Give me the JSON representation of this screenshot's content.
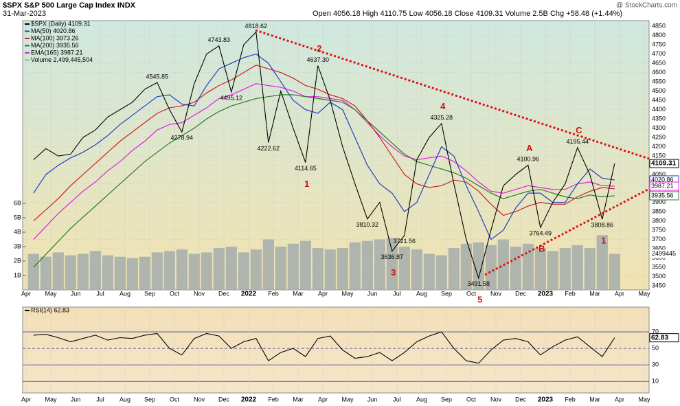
{
  "chart_data": [
    {
      "type": "line",
      "title": "$SPX S&P 500 Large Cap Index INDX",
      "subtitle": "31-Mar-2023",
      "quote": "Open 4056.18  High 4110.75  Low 4056.18  Close 4109.31  Volume 2.5B  Chg +58.48 (+1.44%)",
      "credit": "@ StockCharts.com",
      "categories": [
        "Apr",
        null,
        "May",
        null,
        "Jun",
        null,
        "Jul",
        null,
        "Aug",
        null,
        "Sep",
        null,
        "Oct",
        null,
        "Nov",
        null,
        "Dec",
        null,
        "2022",
        null,
        "Feb",
        null,
        "Mar",
        null,
        "Apr",
        null,
        "May",
        null,
        "Jun",
        null,
        "Jul",
        null,
        "Aug",
        null,
        "Sep",
        null,
        "Oct",
        null,
        "Nov",
        null,
        "Dec",
        null,
        "2023",
        null,
        "Feb",
        null,
        "Mar",
        null,
        "Apr",
        null,
        "May",
        null
      ],
      "ylim": [
        3428,
        4880
      ],
      "yticks": [
        3450,
        3500,
        3550,
        3600,
        3650,
        3700,
        3750,
        3800,
        3850,
        3900,
        3950,
        4000,
        4050,
        4100,
        4150,
        4200,
        4250,
        4300,
        4350,
        4400,
        4450,
        4500,
        4550,
        4600,
        4650,
        4700,
        4750,
        4800,
        4850
      ],
      "y2lim": [
        0,
        18670000000
      ],
      "y2ticks": [
        {
          "value": 1000000000,
          "label": "1B"
        },
        {
          "value": 2000000000,
          "label": "2B"
        },
        {
          "value": 3000000000,
          "label": "3B"
        },
        {
          "value": 4000000000,
          "label": "4B"
        },
        {
          "value": 5000000000,
          "label": "5B"
        },
        {
          "value": 6000000000,
          "label": "6B"
        }
      ],
      "grid": true,
      "volume_tag": "2499445",
      "series": [
        {
          "name": "$SPX (Daily) 4109.31",
          "color": "#000000",
          "values": [
            4130,
            4190,
            4150,
            4160,
            4250,
            4290,
            4360,
            4400,
            4440,
            4510,
            4545.85,
            4400,
            4278.94,
            4540,
            4700,
            4743.83,
            4495.12,
            4750,
            4818.62,
            4222.62,
            4500,
            4300,
            4114.65,
            4637.3,
            4450,
            4200,
            4000,
            3810.32,
            3900,
            3636.87,
            3721.56,
            4130,
            4250,
            4325.28,
            4000,
            3700,
            3491.58,
            3750,
            3990,
            4050,
            4100.96,
            3764.49,
            3900,
            4000,
            4195.44,
            4050,
            3808.86,
            4109.31,
            null,
            null,
            null,
            null
          ],
          "value_labels": [
            null,
            null,
            null,
            null,
            null,
            null,
            null,
            null,
            null,
            null,
            "4545.85",
            null,
            "4278.94",
            null,
            null,
            "4743.83",
            "4495.12",
            null,
            "4818.62",
            "4222.62",
            null,
            null,
            "4114.65",
            "4637.30",
            null,
            null,
            null,
            "3810.32",
            null,
            "3636.87",
            "3721.56",
            null,
            null,
            "4325.28",
            null,
            null,
            "3491.58",
            null,
            null,
            null,
            "4100.96",
            "3764.49",
            null,
            null,
            "4195.44",
            null,
            "3808.86",
            null,
            null,
            null,
            null,
            null
          ],
          "wave_labels": [
            null,
            null,
            null,
            null,
            null,
            null,
            null,
            null,
            null,
            null,
            null,
            null,
            null,
            null,
            null,
            null,
            null,
            null,
            null,
            null,
            null,
            null,
            "1",
            "2",
            null,
            null,
            null,
            null,
            null,
            "3",
            null,
            null,
            null,
            "4",
            null,
            null,
            "5",
            null,
            null,
            null,
            "A",
            "B",
            null,
            null,
            "C",
            null,
            "1",
            null,
            null,
            null,
            null,
            null
          ]
        },
        {
          "name": "MA(50) 4020.86",
          "color": "#2040c0",
          "values": [
            3950,
            4050,
            4100,
            4140,
            4170,
            4210,
            4260,
            4320,
            4370,
            4420,
            4470,
            4480,
            4430,
            4420,
            4530,
            4620,
            4650,
            4680,
            4700,
            4650,
            4550,
            4450,
            4400,
            4380,
            4440,
            4400,
            4250,
            4100,
            4000,
            3950,
            3850,
            3900,
            4050,
            4200,
            4150,
            3990,
            3850,
            3700,
            3750,
            3870,
            3950,
            3950,
            3900,
            3900,
            4000,
            4080,
            4030,
            4020.86,
            null,
            null,
            null,
            null
          ]
        },
        {
          "name": "MA(100) 3973.26",
          "color": "#cc2020",
          "values": [
            3800,
            3860,
            3920,
            3990,
            4050,
            4110,
            4170,
            4230,
            4280,
            4330,
            4380,
            4410,
            4420,
            4440,
            4490,
            4530,
            4560,
            4600,
            4640,
            4620,
            4600,
            4570,
            4530,
            4510,
            4480,
            4460,
            4420,
            4340,
            4250,
            4150,
            4050,
            4000,
            3980,
            3990,
            4020,
            4010,
            3960,
            3890,
            3830,
            3850,
            3880,
            3900,
            3890,
            3890,
            3930,
            3960,
            3980,
            3973.26,
            null,
            null,
            null,
            null
          ]
        },
        {
          "name": "MA(200) 3935.56",
          "color": "#2a7a2a",
          "values": [
            3550,
            3620,
            3690,
            3760,
            3820,
            3880,
            3940,
            4000,
            4060,
            4120,
            4170,
            4220,
            4260,
            4300,
            4350,
            4390,
            4420,
            4440,
            4460,
            4470,
            4480,
            4480,
            4470,
            4460,
            4450,
            4440,
            4400,
            4340,
            4280,
            4220,
            4160,
            4120,
            4100,
            4080,
            4060,
            4030,
            3990,
            3950,
            3920,
            3940,
            3960,
            3970,
            3950,
            3930,
            3920,
            3940,
            3930,
            3935.56,
            null,
            null,
            null,
            null
          ]
        },
        {
          "name": "EMA(165) 3987.21",
          "color": "#e020e0",
          "values": [
            3700,
            3770,
            3840,
            3900,
            3960,
            4010,
            4070,
            4120,
            4180,
            4230,
            4290,
            4320,
            4330,
            4370,
            4410,
            4460,
            4480,
            4510,
            4540,
            4530,
            4520,
            4500,
            4470,
            4470,
            4460,
            4450,
            4400,
            4330,
            4260,
            4200,
            4150,
            4130,
            4140,
            4150,
            4120,
            4070,
            4010,
            3960,
            3950,
            3970,
            3990,
            3980,
            3970,
            3970,
            4000,
            4010,
            3990,
            3987.21,
            null,
            null,
            null,
            null
          ]
        },
        {
          "name": "Volume 2,499,445,504",
          "color": "#a3abab",
          "type": "bar",
          "axis": "y2",
          "values": [
            2500000000,
            2300000000,
            2600000000,
            2400000000,
            2500000000,
            2700000000,
            2400000000,
            2300000000,
            2200000000,
            2300000000,
            2600000000,
            2700000000,
            2800000000,
            2500000000,
            2600000000,
            2900000000,
            3000000000,
            2600000000,
            2800000000,
            3500000000,
            3000000000,
            3200000000,
            3400000000,
            2900000000,
            2800000000,
            2900000000,
            3300000000,
            3400000000,
            3500000000,
            3600000000,
            3000000000,
            2800000000,
            2500000000,
            2400000000,
            2900000000,
            3200000000,
            3300000000,
            3100000000,
            3500000000,
            3000000000,
            3200000000,
            2900000000,
            2700000000,
            2900000000,
            3100000000,
            2900000000,
            3800000000,
            2499445504,
            null,
            null,
            null,
            null
          ]
        }
      ]
    },
    {
      "type": "line",
      "categories": [
        "Apr",
        null,
        "May",
        null,
        "Jun",
        null,
        "Jul",
        null,
        "Aug",
        null,
        "Sep",
        null,
        "Oct",
        null,
        "Nov",
        null,
        "Dec",
        null,
        "2022",
        null,
        "Feb",
        null,
        "Mar",
        null,
        "Apr",
        null,
        "May",
        null,
        "Jun",
        null,
        "Jul",
        null,
        "Aug",
        null,
        "Sep",
        null,
        "Oct",
        null,
        "Nov",
        null,
        "Dec",
        null,
        "2023",
        null,
        "Feb",
        null,
        "Mar",
        null,
        "Apr",
        null,
        "May",
        null
      ],
      "ylim": [
        -4,
        100
      ],
      "yticks": [
        10,
        30,
        50,
        70
      ],
      "series": [
        {
          "name": "RSI(14) 62.83",
          "color": "#000000",
          "values": [
            66,
            67,
            63,
            58,
            62,
            66,
            60,
            63,
            62,
            66,
            68,
            50,
            42,
            62,
            68,
            65,
            50,
            58,
            62,
            35,
            45,
            50,
            40,
            62,
            65,
            48,
            38,
            40,
            45,
            35,
            45,
            58,
            65,
            70,
            50,
            35,
            32,
            48,
            60,
            62,
            58,
            42,
            52,
            60,
            64,
            52,
            40,
            62.83,
            null,
            null,
            null,
            null
          ]
        }
      ]
    }
  ]
}
